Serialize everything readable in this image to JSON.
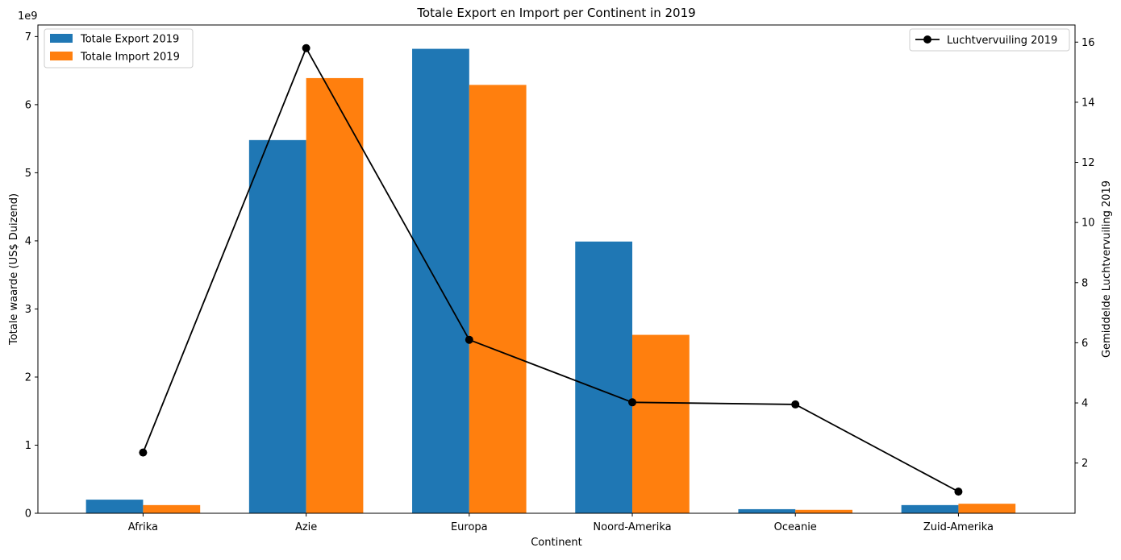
{
  "chart_data": {
    "type": "bar+line",
    "title": "Totale Export en Import per Continent in 2019",
    "xlabel": "Continent",
    "ylabel_left": "Totale waarde (US$ Duizend)",
    "ylabel_right": "Gemiddelde Luchtvervuiling 2019",
    "y_left_multiplier_label": "1e9",
    "categories": [
      "Afrika",
      "Azie",
      "Europa",
      "Noord-Amerika",
      "Oceanie",
      "Zuid-Amerika"
    ],
    "bar_series": [
      {
        "name": "Totale Export 2019",
        "color": "#1f77b4",
        "values": [
          0.2,
          5.48,
          6.82,
          3.99,
          0.06,
          0.12
        ]
      },
      {
        "name": "Totale Import 2019",
        "color": "#ff7f0e",
        "values": [
          0.12,
          6.39,
          6.29,
          2.62,
          0.05,
          0.14
        ]
      }
    ],
    "line_series": {
      "name": "Luchtvervuiling 2019",
      "color": "#000000",
      "values": [
        2.35,
        15.8,
        6.1,
        4.02,
        3.95,
        1.05
      ]
    },
    "ylim_left": [
      0,
      7.17
    ],
    "yticks_left": [
      "0",
      "1",
      "2",
      "3",
      "4",
      "5",
      "6",
      "7"
    ],
    "ylim_right": [
      0.33,
      16.57
    ],
    "yticks_right": [
      "2",
      "4",
      "6",
      "8",
      "10",
      "12",
      "14",
      "16"
    ],
    "legend_left_position": "top-left",
    "legend_right_position": "top-right",
    "grid": false
  }
}
